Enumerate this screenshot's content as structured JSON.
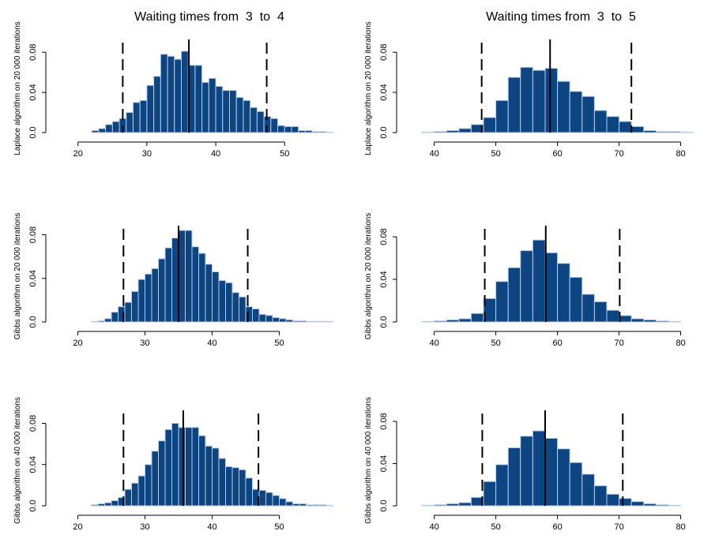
{
  "columns": [
    {
      "title": "Waiting times from  3  to  4"
    },
    {
      "title": "Waiting times from  3  to  5"
    }
  ],
  "chart_data": [
    {
      "type": "bar",
      "panel": "row1-col1",
      "ylabel": "Laplace algorithm on 20 000 iterations",
      "xlim": [
        19,
        58
      ],
      "ylim": [
        0,
        0.088
      ],
      "xticks": [
        20,
        30,
        40,
        50
      ],
      "yticks": [
        "0.0",
        "0.04",
        "0.08"
      ],
      "ytick_values": [
        0,
        0.04,
        0.08
      ],
      "bin_start": 22,
      "bin_width": 1,
      "values": [
        0.002,
        0.004,
        0.008,
        0.011,
        0.014,
        0.02,
        0.03,
        0.032,
        0.047,
        0.056,
        0.078,
        0.076,
        0.073,
        0.081,
        0.067,
        0.067,
        0.05,
        0.054,
        0.046,
        0.042,
        0.042,
        0.035,
        0.032,
        0.025,
        0.021,
        0.016,
        0.014,
        0.007,
        0.006,
        0.006,
        0.002,
        0.002,
        0.001,
        0.001,
        0.0005
      ],
      "ci_lower": 26.5,
      "ci_upper": 47.4,
      "mean": 36.1
    },
    {
      "type": "bar",
      "panel": "row1-col2",
      "ylabel": "Laplace algorithm on 20 000 iterations",
      "xlim": [
        38,
        83
      ],
      "ylim": [
        0,
        0.088
      ],
      "xticks": [
        40,
        50,
        60,
        70,
        80
      ],
      "yticks": [
        "0.0",
        "0.04",
        "0.08"
      ],
      "ytick_values": [
        0,
        0.04,
        0.08
      ],
      "bin_start": 38,
      "bin_width": 2,
      "values": [
        0.0005,
        0.001,
        0.002,
        0.004,
        0.008,
        0.015,
        0.032,
        0.055,
        0.065,
        0.062,
        0.064,
        0.051,
        0.041,
        0.036,
        0.022,
        0.016,
        0.011,
        0.006,
        0.002,
        0.001,
        0.001,
        0.0005
      ],
      "ci_lower": 47.7,
      "ci_upper": 72.0,
      "mean": 58.8
    },
    {
      "type": "bar",
      "panel": "row2-col1",
      "ylabel": "Gibbs algorithm on 20 000 iterations",
      "xlim": [
        19,
        59
      ],
      "ylim": [
        0,
        0.084
      ],
      "xticks": [
        20,
        30,
        40,
        50
      ],
      "yticks": [
        "0.0",
        "0.04",
        "0.08"
      ],
      "ytick_values": [
        0,
        0.04,
        0.08
      ],
      "bin_start": 22,
      "bin_width": 1,
      "values": [
        0.0005,
        0.001,
        0.003,
        0.009,
        0.014,
        0.018,
        0.028,
        0.039,
        0.044,
        0.049,
        0.058,
        0.068,
        0.077,
        0.084,
        0.084,
        0.069,
        0.063,
        0.053,
        0.046,
        0.038,
        0.036,
        0.027,
        0.023,
        0.014,
        0.012,
        0.007,
        0.006,
        0.004,
        0.003,
        0.002,
        0.001,
        0.001,
        0.0005,
        0.0005,
        0.0005,
        0.0005
      ],
      "ci_lower": 26.8,
      "ci_upper": 45.3,
      "mean": 35.0
    },
    {
      "type": "bar",
      "panel": "row2-col2",
      "ylabel": "Gibbs algorithm on 20 000 iterations",
      "xlim": [
        38,
        83
      ],
      "ylim": [
        0,
        0.086
      ],
      "xticks": [
        40,
        50,
        60,
        70,
        80
      ],
      "yticks": [
        "0.0",
        "0.04",
        "0.08"
      ],
      "ytick_values": [
        0,
        0.04,
        0.08
      ],
      "bin_start": 38,
      "bin_width": 2,
      "values": [
        0.0005,
        0.001,
        0.002,
        0.003,
        0.008,
        0.022,
        0.038,
        0.051,
        0.067,
        0.077,
        0.065,
        0.055,
        0.042,
        0.026,
        0.019,
        0.011,
        0.006,
        0.003,
        0.002,
        0.001,
        0.0005
      ],
      "ci_lower": 48.2,
      "ci_upper": 70.1,
      "mean": 58.1
    },
    {
      "type": "bar",
      "panel": "row3-col1",
      "ylabel": "Gibbs algorithm on 40 000 iterations",
      "xlim": [
        19,
        59
      ],
      "ylim": [
        0,
        0.088
      ],
      "xticks": [
        20,
        30,
        40,
        50
      ],
      "yticks": [
        "0.0",
        "0.04",
        "0.08"
      ],
      "ytick_values": [
        0,
        0.04,
        0.08
      ],
      "bin_start": 22,
      "bin_width": 1,
      "values": [
        0.001,
        0.002,
        0.003,
        0.005,
        0.008,
        0.016,
        0.022,
        0.029,
        0.04,
        0.053,
        0.063,
        0.074,
        0.08,
        0.076,
        0.076,
        0.076,
        0.068,
        0.058,
        0.056,
        0.046,
        0.038,
        0.037,
        0.035,
        0.027,
        0.016,
        0.015,
        0.013,
        0.01,
        0.007,
        0.004,
        0.002,
        0.002,
        0.001,
        0.001,
        0.001,
        0.0005
      ],
      "ci_lower": 26.8,
      "ci_upper": 46.9,
      "mean": 35.7
    },
    {
      "type": "bar",
      "panel": "row3-col2",
      "ylabel": "Gibbs algorithm on 40 000 iterations",
      "xlim": [
        38,
        83
      ],
      "ylim": [
        0,
        0.086
      ],
      "xticks": [
        40,
        50,
        60,
        70,
        80
      ],
      "yticks": [
        "0.0",
        "0.04",
        "0.08"
      ],
      "ytick_values": [
        0,
        0.04,
        0.08
      ],
      "bin_start": 38,
      "bin_width": 2,
      "values": [
        0.0005,
        0.001,
        0.002,
        0.003,
        0.008,
        0.023,
        0.039,
        0.055,
        0.066,
        0.071,
        0.064,
        0.054,
        0.041,
        0.03,
        0.019,
        0.011,
        0.007,
        0.004,
        0.002,
        0.001,
        0.0005
      ],
      "ci_lower": 47.8,
      "ci_upper": 70.6,
      "mean": 58.0
    }
  ]
}
